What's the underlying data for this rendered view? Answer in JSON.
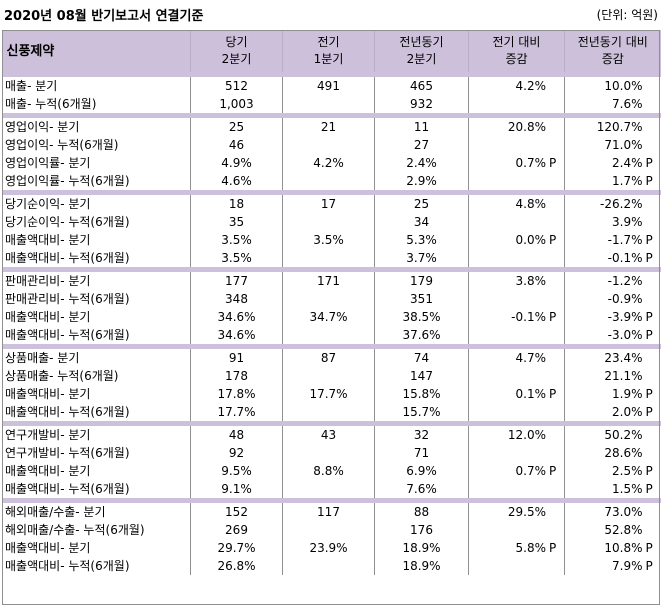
{
  "title": "2020년 08월 반기보고서 연결기준",
  "unit": "(단위: 억원)",
  "header": {
    "company": "신풍제약",
    "cols": [
      "당기\n2분기",
      "전기\n1분기",
      "전년동기\n2분기",
      "전기 대비\n증감",
      "전년동기 대비\n증감"
    ]
  },
  "groups": [
    {
      "rows": [
        {
          "label": "매출- 분기",
          "c1": "512",
          "c2": "491",
          "c3": "465",
          "c4": "4.2%",
          "c4p": "",
          "c5": "10.0%",
          "c5p": ""
        },
        {
          "label": "매출- 누적(6개월)",
          "c1": "1,003",
          "c2": "",
          "c3": "932",
          "c4": "",
          "c4p": "",
          "c5": "7.6%",
          "c5p": ""
        }
      ]
    },
    {
      "rows": [
        {
          "label": "영업이익- 분기",
          "c1": "25",
          "c2": "21",
          "c3": "11",
          "c4": "20.8%",
          "c4p": "",
          "c5": "120.7%",
          "c5p": ""
        },
        {
          "label": "영업이익- 누적(6개월)",
          "c1": "46",
          "c2": "",
          "c3": "27",
          "c4": "",
          "c4p": "",
          "c5": "71.0%",
          "c5p": ""
        },
        {
          "label": "영업이익률- 분기",
          "c1": "4.9%",
          "c2": "4.2%",
          "c3": "2.4%",
          "c4": "0.7%",
          "c4p": "P",
          "c5": "2.4%",
          "c5p": "P"
        },
        {
          "label": "영업이익률- 누적(6개월)",
          "c1": "4.6%",
          "c2": "",
          "c3": "2.9%",
          "c4": "",
          "c4p": "",
          "c5": "1.7%",
          "c5p": "P"
        }
      ]
    },
    {
      "rows": [
        {
          "label": "당기순이익- 분기",
          "c1": "18",
          "c2": "17",
          "c3": "25",
          "c4": "4.8%",
          "c4p": "",
          "c5": "-26.2%",
          "c5p": ""
        },
        {
          "label": "당기순이익- 누적(6개월)",
          "c1": "35",
          "c2": "",
          "c3": "34",
          "c4": "",
          "c4p": "",
          "c5": "3.9%",
          "c5p": ""
        },
        {
          "label": "매출액대비- 분기",
          "c1": "3.5%",
          "c2": "3.5%",
          "c3": "5.3%",
          "c4": "0.0%",
          "c4p": "P",
          "c5": "-1.7%",
          "c5p": "P"
        },
        {
          "label": "매출액대비- 누적(6개월)",
          "c1": "3.5%",
          "c2": "",
          "c3": "3.7%",
          "c4": "",
          "c4p": "",
          "c5": "-0.1%",
          "c5p": "P"
        }
      ]
    },
    {
      "rows": [
        {
          "label": "판매관리비- 분기",
          "c1": "177",
          "c2": "171",
          "c3": "179",
          "c4": "3.8%",
          "c4p": "",
          "c5": "-1.2%",
          "c5p": ""
        },
        {
          "label": "판매관리비- 누적(6개월)",
          "c1": "348",
          "c2": "",
          "c3": "351",
          "c4": "",
          "c4p": "",
          "c5": "-0.9%",
          "c5p": ""
        },
        {
          "label": "매출액대비- 분기",
          "c1": "34.6%",
          "c2": "34.7%",
          "c3": "38.5%",
          "c4": "-0.1%",
          "c4p": "P",
          "c5": "-3.9%",
          "c5p": "P"
        },
        {
          "label": "매출액대비- 누적(6개월)",
          "c1": "34.6%",
          "c2": "",
          "c3": "37.6%",
          "c4": "",
          "c4p": "",
          "c5": "-3.0%",
          "c5p": "P"
        }
      ]
    },
    {
      "rows": [
        {
          "label": "상품매출- 분기",
          "c1": "91",
          "c2": "87",
          "c3": "74",
          "c4": "4.7%",
          "c4p": "",
          "c5": "23.4%",
          "c5p": ""
        },
        {
          "label": "상품매출- 누적(6개월)",
          "c1": "178",
          "c2": "",
          "c3": "147",
          "c4": "",
          "c4p": "",
          "c5": "21.1%",
          "c5p": ""
        },
        {
          "label": "매출액대비- 분기",
          "c1": "17.8%",
          "c2": "17.7%",
          "c3": "15.8%",
          "c4": "0.1%",
          "c4p": "P",
          "c5": "1.9%",
          "c5p": "P"
        },
        {
          "label": "매출액대비- 누적(6개월)",
          "c1": "17.7%",
          "c2": "",
          "c3": "15.7%",
          "c4": "",
          "c4p": "",
          "c5": "2.0%",
          "c5p": "P"
        }
      ]
    },
    {
      "rows": [
        {
          "label": "연구개발비- 분기",
          "c1": "48",
          "c2": "43",
          "c3": "32",
          "c4": "12.0%",
          "c4p": "",
          "c5": "50.2%",
          "c5p": ""
        },
        {
          "label": "연구개발비- 누적(6개월)",
          "c1": "92",
          "c2": "",
          "c3": "71",
          "c4": "",
          "c4p": "",
          "c5": "28.6%",
          "c5p": ""
        },
        {
          "label": "매출액대비- 분기",
          "c1": "9.5%",
          "c2": "8.8%",
          "c3": "6.9%",
          "c4": "0.7%",
          "c4p": "P",
          "c5": "2.5%",
          "c5p": "P"
        },
        {
          "label": "매출액대비- 누적(6개월)",
          "c1": "9.1%",
          "c2": "",
          "c3": "7.6%",
          "c4": "",
          "c4p": "",
          "c5": "1.5%",
          "c5p": "P"
        }
      ]
    },
    {
      "rows": [
        {
          "label": "해외매출/수출- 분기",
          "c1": "152",
          "c2": "117",
          "c3": "88",
          "c4": "29.5%",
          "c4p": "",
          "c5": "73.0%",
          "c5p": ""
        },
        {
          "label": "해외매출/수출- 누적(6개월)",
          "c1": "269",
          "c2": "",
          "c3": "176",
          "c4": "",
          "c4p": "",
          "c5": "52.8%",
          "c5p": ""
        },
        {
          "label": "매출액대비- 분기",
          "c1": "29.7%",
          "c2": "23.9%",
          "c3": "18.9%",
          "c4": "5.8%",
          "c4p": "P",
          "c5": "10.8%",
          "c5p": "P"
        },
        {
          "label": "매출액대비- 누적(6개월)",
          "c1": "26.8%",
          "c2": "",
          "c3": "18.9%",
          "c4": "",
          "c4p": "",
          "c5": "7.9%",
          "c5p": "P"
        }
      ]
    }
  ]
}
